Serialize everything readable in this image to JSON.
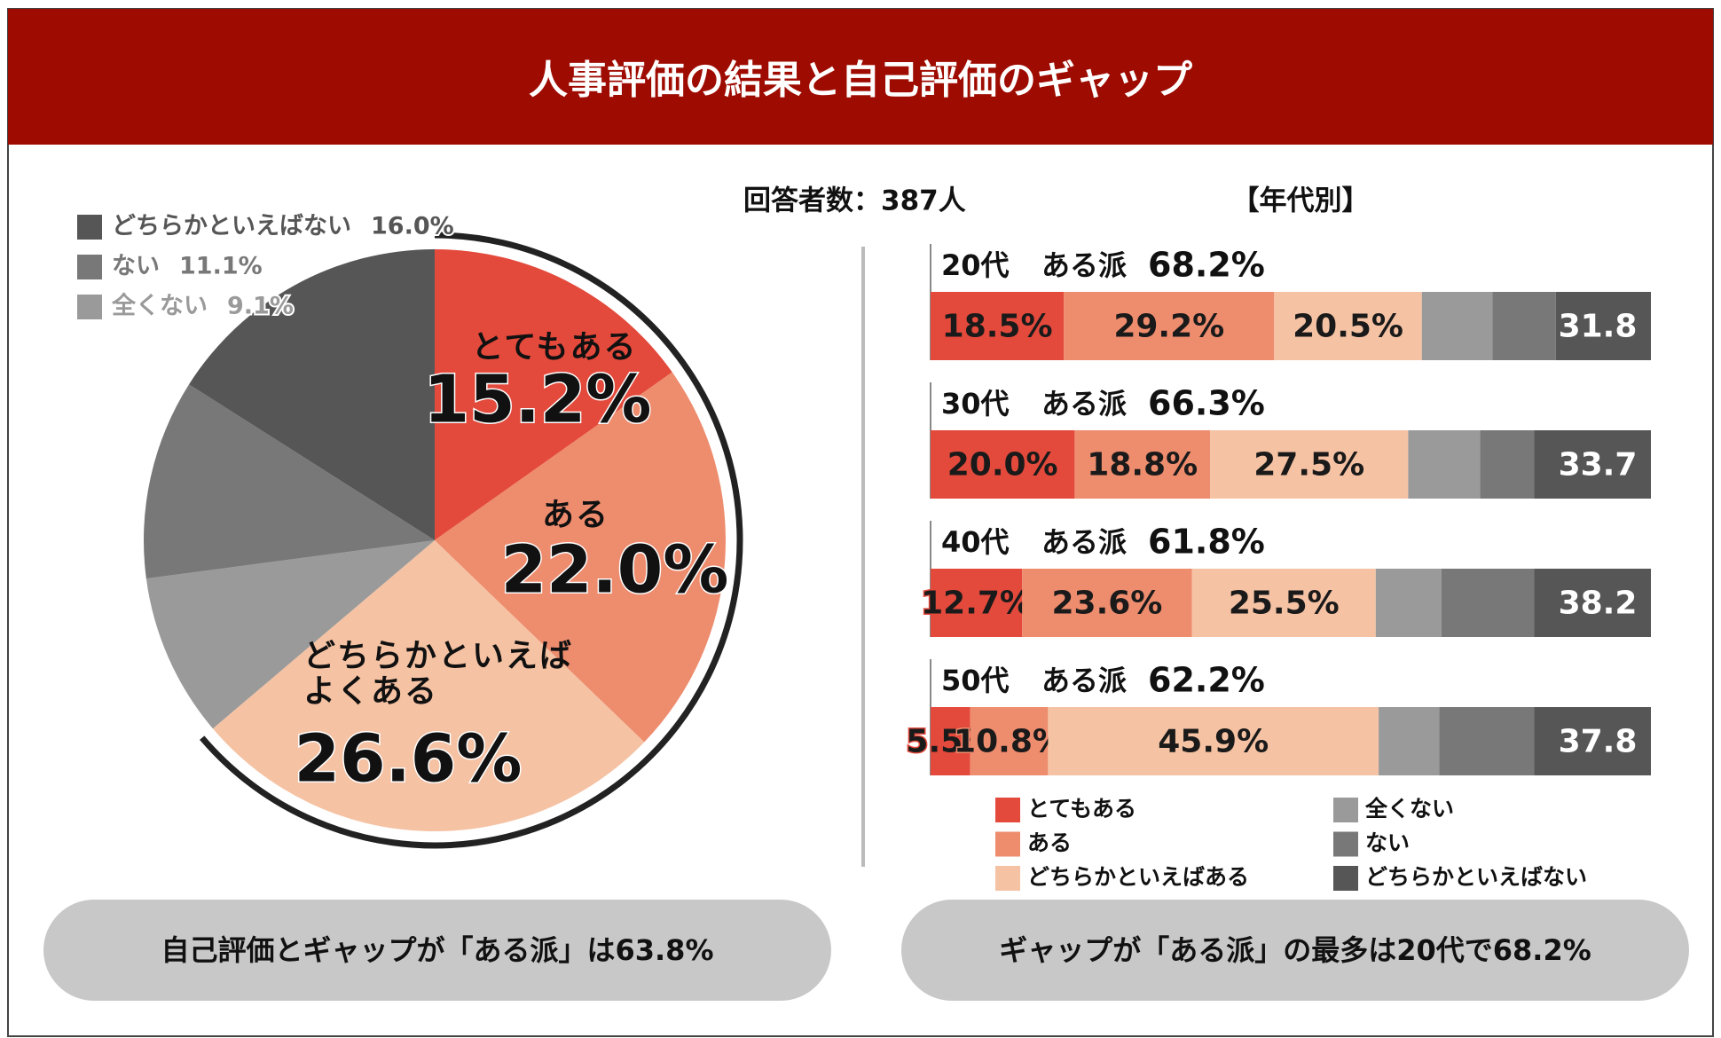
{
  "title": "人事評価の結果と自己評価のギャップ",
  "respondents": "回答者数：387人",
  "summaries": [
    "自己評価とギャップが「ある派」は63.8%",
    "ギャップが「ある派」の最多は20代で68.2%"
  ],
  "chart_data": [
    {
      "type": "pie",
      "categories": [
        "とてもある",
        "ある",
        "どちらかといえば\nよくある",
        "全くない",
        "ない",
        "どちらかといえばない"
      ],
      "values": [
        15.2,
        22.0,
        26.6,
        9.1,
        11.1,
        16.0
      ],
      "value_labels": [
        "15.2%",
        "22.0%",
        "26.6%",
        "9.1%",
        "11.1%",
        "16.0%"
      ],
      "colors": [
        "#e34a3c",
        "#ee8c6e",
        "#f5c2a3",
        "#9a9a9a",
        "#787878",
        "#565656"
      ]
    },
    {
      "type": "bar",
      "orientation": "horizontal",
      "stacked": true,
      "title": "【年代別】",
      "categories": [
        "20代",
        "30代",
        "40代",
        "50代"
      ],
      "group_caption": "ある派",
      "aru_totals": [
        "68.2%",
        "66.3%",
        "61.8%",
        "62.2%"
      ],
      "nai_totals": [
        31.8,
        33.7,
        38.2,
        37.8
      ],
      "xlim": [
        0,
        100
      ],
      "legend": "bottom",
      "series": [
        {
          "name": "とてもある",
          "color": "#e34a3c",
          "values": [
            18.5,
            20.0,
            12.7,
            5.5
          ],
          "value_labels": [
            "18.5%",
            "20.0%",
            "12.7%",
            "5.5%"
          ]
        },
        {
          "name": "ある",
          "color": "#ee8c6e",
          "values": [
            29.2,
            18.8,
            23.6,
            10.8
          ],
          "value_labels": [
            "29.2%",
            "18.8%",
            "23.6%",
            "10.8%"
          ]
        },
        {
          "name": "どちらかといえばある",
          "color": "#f5c2a3",
          "values": [
            20.5,
            27.5,
            25.5,
            45.9
          ],
          "value_labels": [
            "20.5%",
            "27.5%",
            "25.5%",
            "45.9%"
          ]
        },
        {
          "name": "全くない",
          "color": "#9a9a9a",
          "values": [
            9.8,
            10.0,
            9.1,
            8.4
          ]
        },
        {
          "name": "ない",
          "color": "#787878",
          "values": [
            8.8,
            7.5,
            12.9,
            13.2
          ]
        },
        {
          "name": "どちらかといえばない",
          "color": "#565656",
          "values": [
            13.2,
            16.2,
            16.2,
            16.2
          ]
        }
      ]
    }
  ]
}
